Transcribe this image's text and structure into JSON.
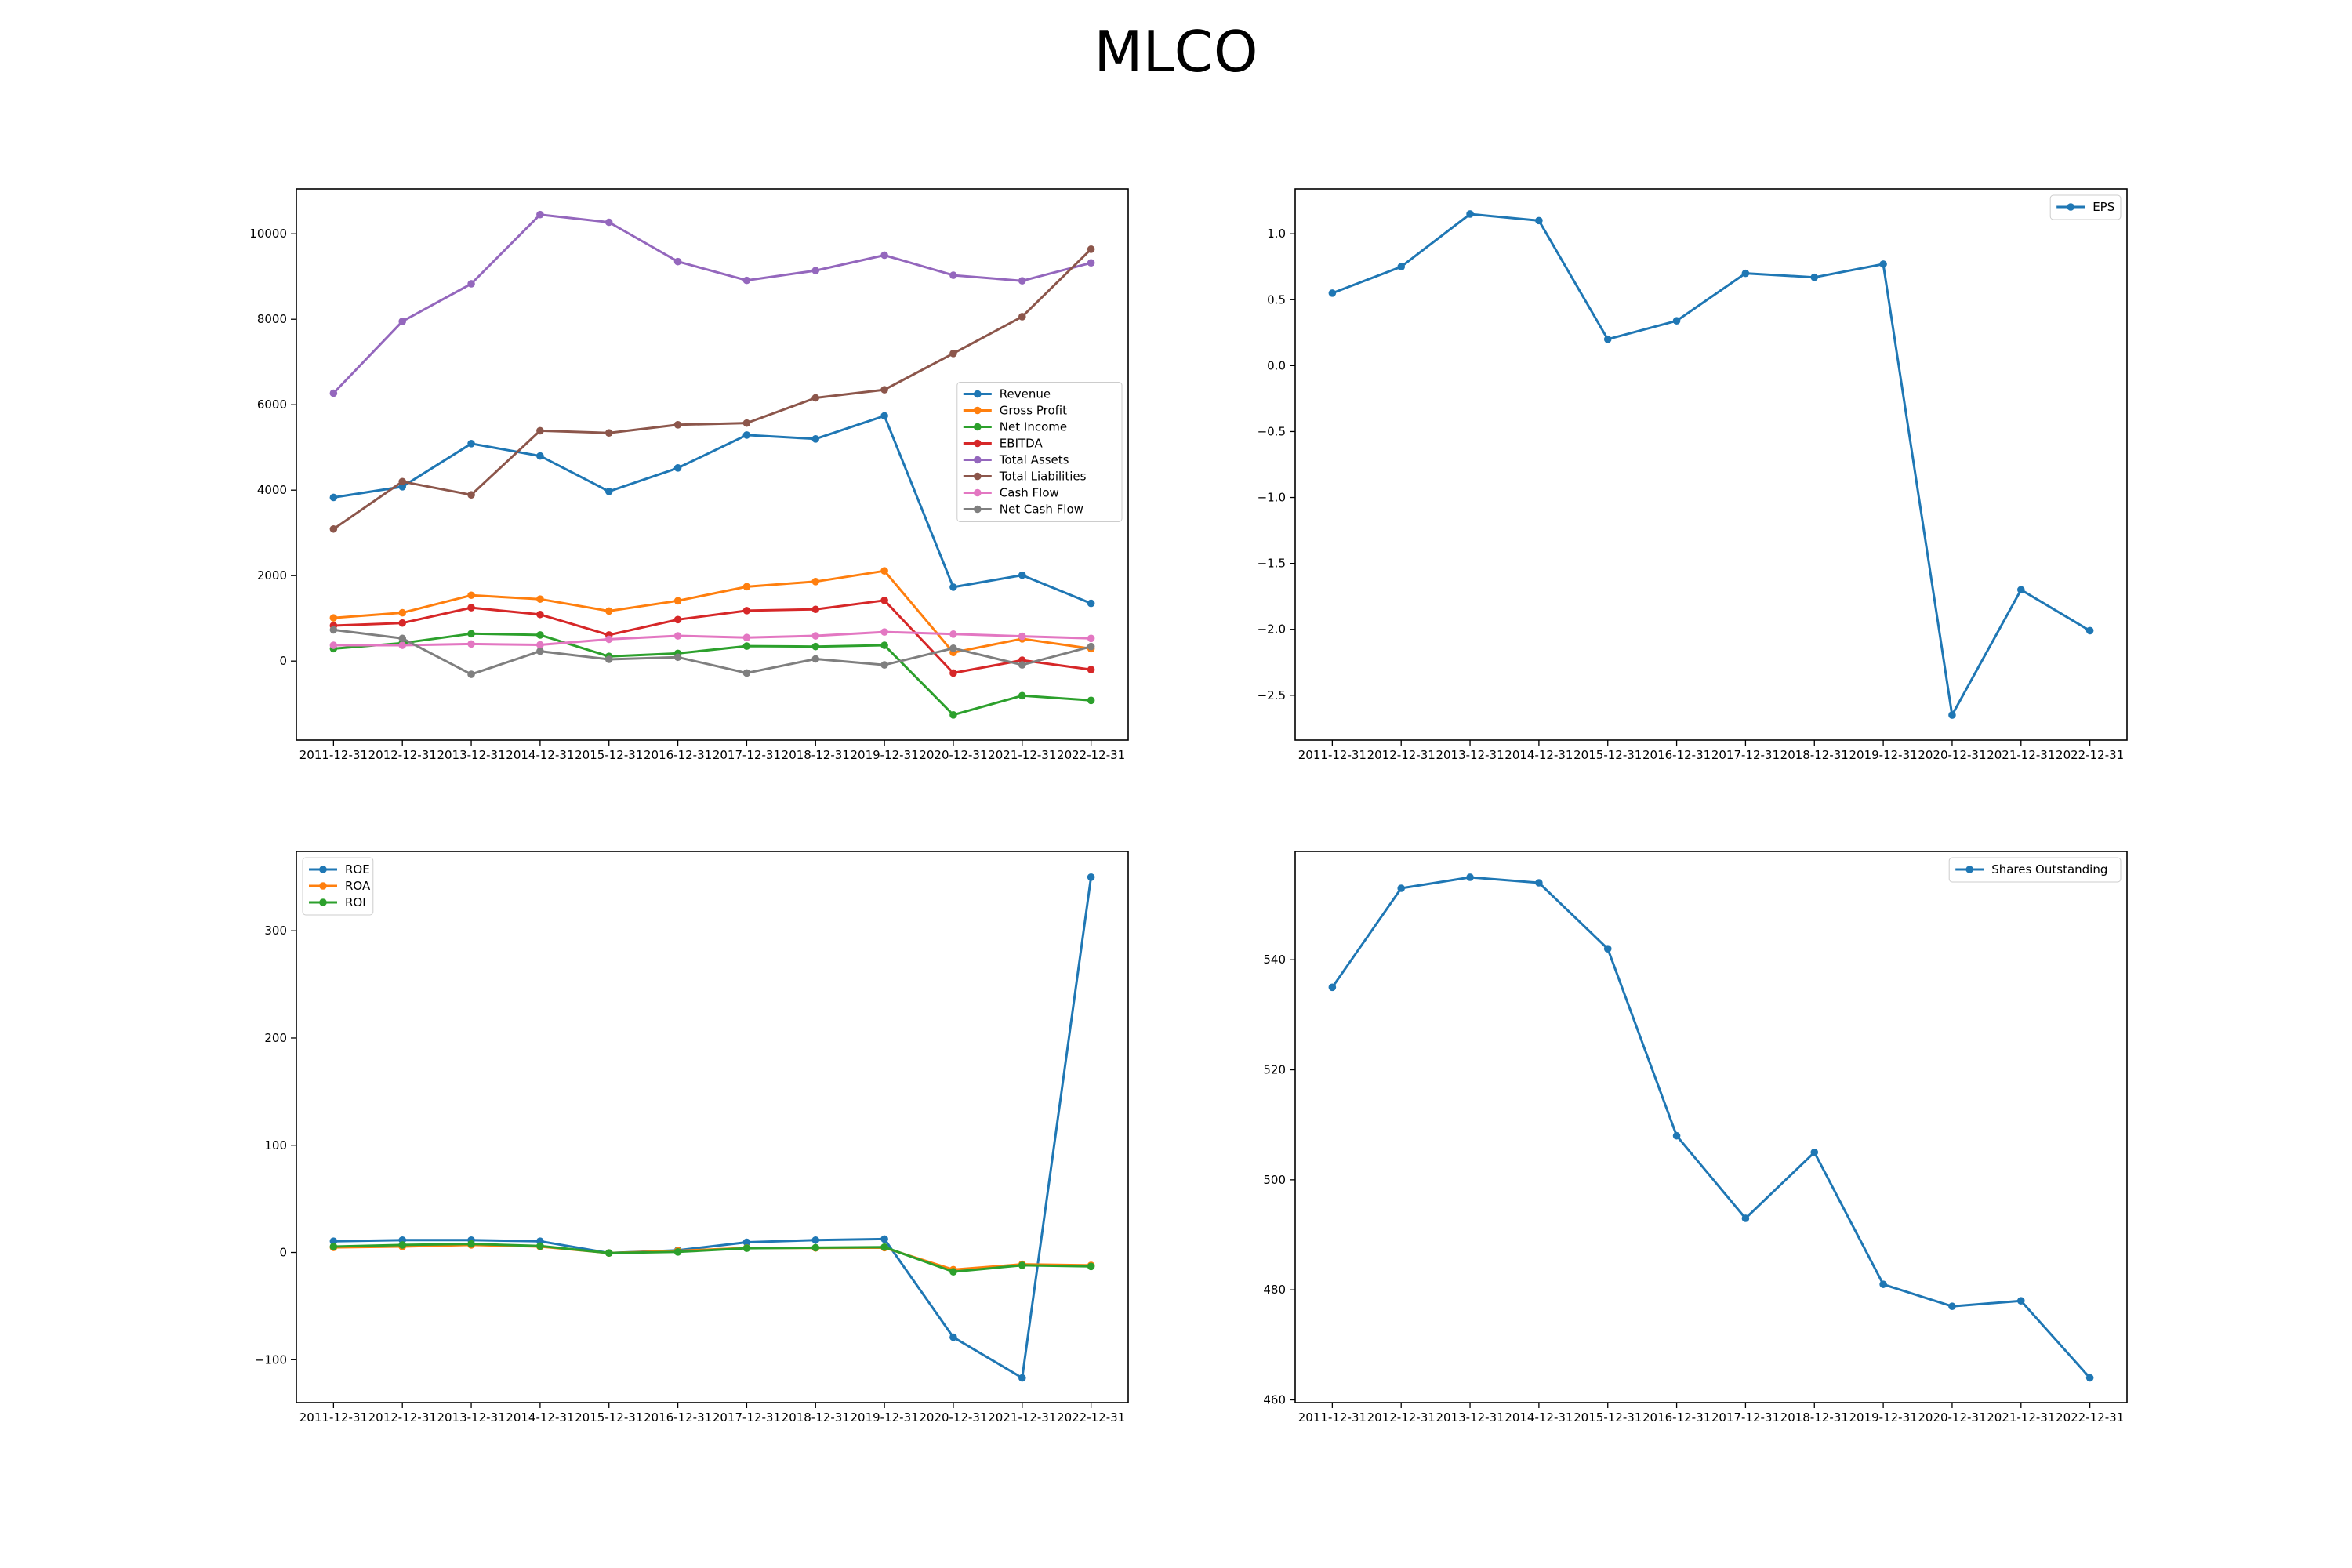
{
  "title": "MLCO",
  "colors": {
    "blue": "#1f77b4",
    "orange": "#ff7f0e",
    "green": "#2ca02c",
    "red": "#d62728",
    "purple": "#9467bd",
    "brown": "#8c564b",
    "pink": "#e377c2",
    "gray": "#7f7f7f"
  },
  "chart_data": [
    {
      "type": "line",
      "title": "",
      "xlabel": "",
      "ylabel": "",
      "categories": [
        "2011-12-31",
        "2012-12-31",
        "2013-12-31",
        "2014-12-31",
        "2015-12-31",
        "2016-12-31",
        "2017-12-31",
        "2018-12-31",
        "2019-12-31",
        "2020-12-31",
        "2021-12-31",
        "2022-12-31"
      ],
      "ylim": [
        -1850,
        11050
      ],
      "yticks": [
        0,
        2000,
        4000,
        6000,
        8000,
        10000
      ],
      "ytick_labels": [
        "0",
        "2000",
        "4000",
        "6000",
        "8000",
        "10000"
      ],
      "legend_position": "center-right",
      "grid": false,
      "series": [
        {
          "name": "Revenue",
          "color": "#1f77b4",
          "values": [
            3830,
            4080,
            5090,
            4800,
            3970,
            4520,
            5290,
            5200,
            5740,
            1730,
            2010,
            1350
          ]
        },
        {
          "name": "Gross Profit",
          "color": "#ff7f0e",
          "values": [
            1010,
            1130,
            1540,
            1450,
            1170,
            1410,
            1740,
            1860,
            2110,
            200,
            520,
            290
          ]
        },
        {
          "name": "Net Income",
          "color": "#2ca02c",
          "values": [
            290,
            420,
            640,
            610,
            110,
            180,
            350,
            340,
            370,
            -1260,
            -810,
            -920
          ]
        },
        {
          "name": "EBITDA",
          "color": "#d62728",
          "values": [
            830,
            890,
            1250,
            1090,
            610,
            970,
            1180,
            1210,
            1420,
            -280,
            20,
            -200
          ]
        },
        {
          "name": "Total Assets",
          "color": "#9467bd",
          "values": [
            6270,
            7950,
            8830,
            10450,
            10270,
            9350,
            8910,
            9140,
            9500,
            9030,
            8900,
            9320
          ]
        },
        {
          "name": "Total Liabilities",
          "color": "#8c564b",
          "values": [
            3090,
            4200,
            3890,
            5390,
            5340,
            5530,
            5570,
            6160,
            6350,
            7200,
            8060,
            9640
          ]
        },
        {
          "name": "Cash Flow",
          "color": "#e377c2",
          "values": [
            370,
            370,
            400,
            380,
            510,
            590,
            550,
            590,
            680,
            630,
            580,
            530
          ]
        },
        {
          "name": "Net Cash Flow",
          "color": "#7f7f7f",
          "values": [
            730,
            530,
            -310,
            230,
            40,
            90,
            -280,
            50,
            -90,
            300,
            -90,
            340
          ]
        }
      ]
    },
    {
      "type": "line",
      "title": "",
      "xlabel": "",
      "ylabel": "",
      "categories": [
        "2011-12-31",
        "2012-12-31",
        "2013-12-31",
        "2014-12-31",
        "2015-12-31",
        "2016-12-31",
        "2017-12-31",
        "2018-12-31",
        "2019-12-31",
        "2020-12-31",
        "2021-12-31",
        "2022-12-31"
      ],
      "ylim": [
        -2.84,
        1.34
      ],
      "yticks": [
        -2.5,
        -2.0,
        -1.5,
        -1.0,
        -0.5,
        0.0,
        0.5,
        1.0
      ],
      "ytick_labels": [
        "−2.5",
        "−2.0",
        "−1.5",
        "−1.0",
        "−0.5",
        "0.0",
        "0.5",
        "1.0"
      ],
      "legend_position": "top-right",
      "grid": false,
      "series": [
        {
          "name": "EPS",
          "color": "#1f77b4",
          "values": [
            0.55,
            0.75,
            1.15,
            1.1,
            0.2,
            0.34,
            0.7,
            0.67,
            0.77,
            -2.65,
            -1.7,
            -2.01
          ]
        }
      ]
    },
    {
      "type": "line",
      "title": "",
      "xlabel": "",
      "ylabel": "",
      "categories": [
        "2011-12-31",
        "2012-12-31",
        "2013-12-31",
        "2014-12-31",
        "2015-12-31",
        "2016-12-31",
        "2017-12-31",
        "2018-12-31",
        "2019-12-31",
        "2020-12-31",
        "2021-12-31",
        "2022-12-31"
      ],
      "ylim": [
        -140,
        374
      ],
      "yticks": [
        -100,
        0,
        100,
        200,
        300
      ],
      "ytick_labels": [
        "−100",
        "0",
        "100",
        "200",
        "300"
      ],
      "legend_position": "top-left",
      "grid": false,
      "series": [
        {
          "name": "ROE",
          "color": "#1f77b4",
          "values": [
            10.5,
            11.5,
            11.5,
            10.5,
            -0.5,
            2.0,
            9.5,
            11.5,
            12.5,
            -79,
            -117,
            350
          ]
        },
        {
          "name": "ROA",
          "color": "#ff7f0e",
          "values": [
            4.7,
            5.5,
            7.0,
            5.5,
            -0.5,
            1.5,
            4.2,
            4.2,
            4.5,
            -16,
            -11,
            -12
          ]
        },
        {
          "name": "ROI",
          "color": "#2ca02c",
          "values": [
            5.5,
            7.0,
            8.0,
            6.0,
            -0.5,
            0.5,
            4.0,
            4.5,
            5.0,
            -18,
            -12,
            -13
          ]
        }
      ]
    },
    {
      "type": "line",
      "title": "",
      "xlabel": "",
      "ylabel": "",
      "categories": [
        "2011-12-31",
        "2012-12-31",
        "2013-12-31",
        "2014-12-31",
        "2015-12-31",
        "2016-12-31",
        "2017-12-31",
        "2018-12-31",
        "2019-12-31",
        "2020-12-31",
        "2021-12-31",
        "2022-12-31"
      ],
      "ylim": [
        459.5,
        559.7
      ],
      "yticks": [
        460,
        480,
        500,
        520,
        540
      ],
      "ytick_labels": [
        "460",
        "480",
        "500",
        "520",
        "540"
      ],
      "legend_position": "top-right",
      "grid": false,
      "series": [
        {
          "name": "Shares Outstanding",
          "color": "#1f77b4",
          "values": [
            535,
            553,
            555,
            554,
            542,
            508,
            493,
            505,
            481,
            477,
            478,
            464
          ]
        }
      ]
    }
  ]
}
